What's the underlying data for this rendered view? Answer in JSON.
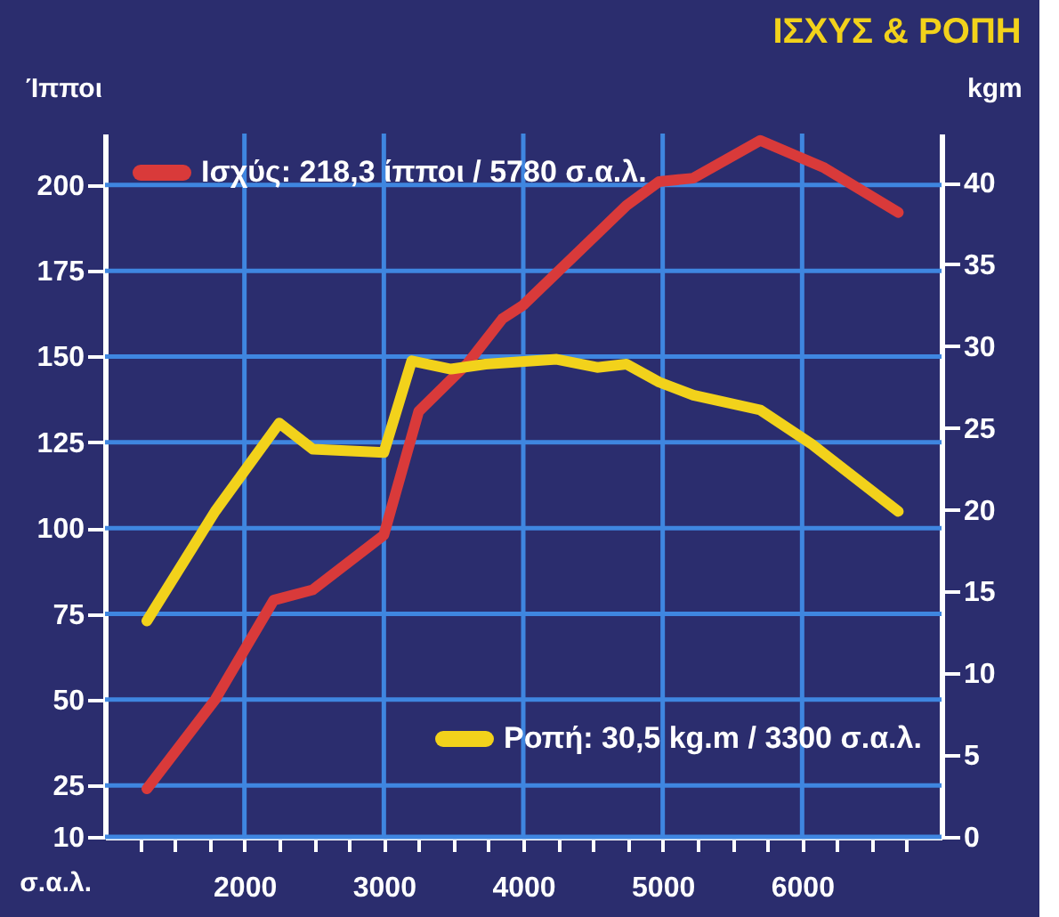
{
  "chart_data": {
    "type": "line",
    "title": "ΙΣΧΥΣ & ΡΟΠΗ",
    "xlabel": "σ.α.λ.",
    "ylabel": "Ίπποι",
    "y2label": "kgm",
    "x": [
      1300,
      1790,
      2210,
      2490,
      3000,
      3250,
      3600,
      3850,
      4000,
      4740,
      4975,
      5220,
      5700,
      6160,
      6690
    ],
    "series": [
      {
        "name": "Ισχύς: 218,3 ίπποι / 5780 σ.α.λ.",
        "color": "#d93a3a",
        "values": [
          24,
          50,
          79,
          82,
          98,
          134,
          148,
          161,
          165,
          194,
          201,
          202,
          213,
          205,
          192
        ]
      },
      {
        "name": "Ροπή: 30,5 kg.m / 3300 σ.α.λ.",
        "color": "#f2d21b",
        "axis": "y2",
        "x": [
          1300,
          1790,
          2250,
          2490,
          3000,
          3200,
          3480,
          3730,
          4240,
          4530,
          4740,
          4975,
          5220,
          5700,
          6070,
          6690
        ],
        "values": [
          13.2,
          19.9,
          25.3,
          23.7,
          23.5,
          29.1,
          28.6,
          28.9,
          29.2,
          28.7,
          28.9,
          27.8,
          27.0,
          26.1,
          24.0,
          19.9
        ]
      }
    ],
    "xlim": [
      1000,
      7000
    ],
    "xticks": [
      {
        "value": 1250,
        "label": null
      },
      {
        "value": 1500,
        "label": null
      },
      {
        "value": 1750,
        "label": null
      },
      2000,
      {
        "value": 2250,
        "label": null
      },
      {
        "value": 2500,
        "label": null
      },
      {
        "value": 2750,
        "label": null
      },
      3000,
      {
        "value": 3250,
        "label": null
      },
      {
        "value": 3500,
        "label": null
      },
      {
        "value": 3750,
        "label": null
      },
      4000,
      {
        "value": 4250,
        "label": null
      },
      {
        "value": 4500,
        "label": null
      },
      {
        "value": 4750,
        "label": null
      },
      5000,
      {
        "value": 5250,
        "label": null
      },
      {
        "value": 5500,
        "label": null
      },
      {
        "value": 5750,
        "label": null
      },
      6000,
      {
        "value": 6250,
        "label": null
      },
      {
        "value": 6500,
        "label": null
      },
      {
        "value": 6750,
        "label": null
      }
    ],
    "ylim": [
      10,
      215
    ],
    "yticks": [
      10,
      25,
      50,
      75,
      100,
      125,
      150,
      175,
      200
    ],
    "y2lim": [
      0,
      43
    ],
    "y2ticks": [
      0,
      5,
      10,
      15,
      20,
      25,
      30,
      35,
      40
    ],
    "grid": true,
    "legend": "top left",
    "line_style": "solid",
    "marker": "none"
  }
}
